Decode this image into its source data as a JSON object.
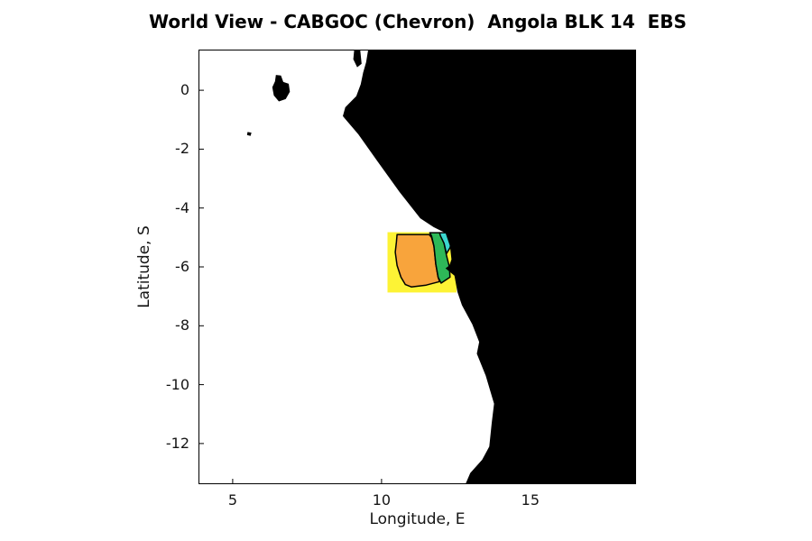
{
  "figure": {
    "title": "World View - CABGOC (Chevron)  Angola BLK 14  EBS",
    "xlabel": "Longitude, E",
    "ylabel": "Latitude, S"
  },
  "axes": {
    "lon_min": 3.85,
    "lon_max": 18.55,
    "lat_min": -13.38,
    "lat_max": 1.38,
    "x_ticks": [
      {
        "value": 5,
        "label": "5"
      },
      {
        "value": 10,
        "label": "10"
      },
      {
        "value": 15,
        "label": "15"
      }
    ],
    "y_ticks": [
      {
        "value": 0,
        "label": "0"
      },
      {
        "value": -2,
        "label": "-2"
      },
      {
        "value": -4,
        "label": "-4"
      },
      {
        "value": -6,
        "label": "-6"
      },
      {
        "value": -8,
        "label": "-8"
      },
      {
        "value": -10,
        "label": "-10"
      },
      {
        "value": -12,
        "label": "-12"
      }
    ]
  },
  "map": {
    "land_color": "#000000",
    "ocean_color": "#ffffff",
    "mainland_coast": [
      [
        9.55,
        1.38
      ],
      [
        9.48,
        0.95
      ],
      [
        9.38,
        0.6
      ],
      [
        9.3,
        0.2
      ],
      [
        9.15,
        -0.2
      ],
      [
        8.78,
        -0.58
      ],
      [
        8.7,
        -0.88
      ],
      [
        9.22,
        -1.5
      ],
      [
        9.85,
        -2.4
      ],
      [
        10.6,
        -3.45
      ],
      [
        11.3,
        -4.35
      ],
      [
        11.75,
        -4.65
      ],
      [
        12.15,
        -4.85
      ],
      [
        12.3,
        -5.3
      ],
      [
        12.35,
        -5.75
      ],
      [
        12.28,
        -5.95
      ],
      [
        12.15,
        -6.05
      ],
      [
        12.45,
        -6.3
      ],
      [
        12.55,
        -6.85
      ],
      [
        12.7,
        -7.3
      ],
      [
        13.05,
        -7.95
      ],
      [
        13.28,
        -8.55
      ],
      [
        13.2,
        -8.95
      ],
      [
        13.5,
        -9.7
      ],
      [
        13.78,
        -10.65
      ],
      [
        13.7,
        -11.3
      ],
      [
        13.62,
        -12.1
      ],
      [
        13.38,
        -12.55
      ],
      [
        12.98,
        -13.0
      ],
      [
        12.82,
        -13.38
      ]
    ],
    "islands": [
      {
        "name": "coastal-strip",
        "points": [
          [
            9.08,
            1.38
          ],
          [
            9.28,
            1.38
          ],
          [
            9.33,
            0.9
          ],
          [
            9.18,
            0.78
          ],
          [
            9.05,
            1.05
          ]
        ]
      },
      {
        "name": "large-island",
        "points": [
          [
            6.45,
            0.52
          ],
          [
            6.62,
            0.5
          ],
          [
            6.7,
            0.28
          ],
          [
            6.88,
            0.22
          ],
          [
            6.92,
            -0.05
          ],
          [
            6.78,
            -0.3
          ],
          [
            6.55,
            -0.38
          ],
          [
            6.38,
            -0.18
          ],
          [
            6.33,
            0.1
          ],
          [
            6.42,
            0.3
          ]
        ]
      },
      {
        "name": "small-island",
        "points": [
          [
            5.5,
            -1.42
          ],
          [
            5.63,
            -1.44
          ],
          [
            5.6,
            -1.55
          ],
          [
            5.48,
            -1.52
          ]
        ]
      }
    ],
    "survey_region": {
      "bounds": {
        "lon_min": 10.2,
        "lon_max": 12.52,
        "lat_min": -6.87,
        "lat_max": -4.82
      },
      "contour_line_color": "#000000",
      "levels": [
        {
          "name": "1-yellow",
          "color": "#fdf335",
          "points": []
        },
        {
          "name": "2-orange",
          "color": "#f8a43c",
          "points": [
            [
              10.52,
              -4.9
            ],
            [
              11.6,
              -4.9
            ],
            [
              11.68,
              -5.0
            ],
            [
              11.76,
              -5.3
            ],
            [
              11.82,
              -5.9
            ],
            [
              11.9,
              -6.35
            ],
            [
              11.95,
              -6.5
            ],
            [
              11.5,
              -6.62
            ],
            [
              11.0,
              -6.68
            ],
            [
              10.8,
              -6.6
            ],
            [
              10.65,
              -6.35
            ],
            [
              10.52,
              -5.95
            ],
            [
              10.46,
              -5.5
            ],
            [
              10.5,
              -5.15
            ]
          ]
        },
        {
          "name": "3-green",
          "color": "#2eb858",
          "points": [
            [
              11.62,
              -4.84
            ],
            [
              11.95,
              -4.84
            ],
            [
              12.1,
              -5.2
            ],
            [
              12.18,
              -5.6
            ],
            [
              12.28,
              -6.0
            ],
            [
              12.3,
              -6.35
            ],
            [
              12.0,
              -6.55
            ],
            [
              11.9,
              -6.35
            ],
            [
              11.82,
              -5.9
            ],
            [
              11.76,
              -5.3
            ],
            [
              11.68,
              -4.95
            ]
          ]
        },
        {
          "name": "4-cyan",
          "color": "#3bd6cf",
          "points": [
            [
              11.95,
              -4.84
            ],
            [
              12.42,
              -4.84
            ],
            [
              12.3,
              -5.35
            ],
            [
              12.18,
              -5.55
            ],
            [
              12.1,
              -5.2
            ],
            [
              11.98,
              -4.95
            ]
          ]
        }
      ]
    }
  }
}
